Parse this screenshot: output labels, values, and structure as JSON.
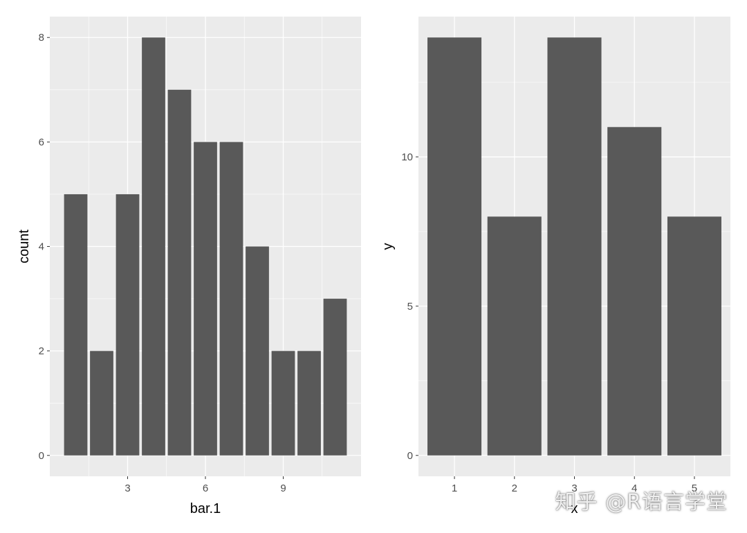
{
  "colors": {
    "panel": "#ebebeb",
    "grid": "#ffffff",
    "bar": "#595959",
    "tick_text": "#4d4d4d"
  },
  "chart_data": [
    {
      "type": "bar",
      "xlabel": "bar.1",
      "ylabel": "count",
      "x": [
        1,
        2,
        3,
        4,
        5,
        6,
        7,
        8,
        9,
        10,
        11
      ],
      "values": [
        5,
        2,
        5,
        8,
        7,
        6,
        6,
        4,
        2,
        2,
        3
      ],
      "xlim": [
        0.0,
        12.0
      ],
      "ylim": [
        -0.4,
        8.4
      ],
      "x_ticks": [
        3,
        6,
        9
      ],
      "y_ticks": [
        0,
        2,
        4,
        6,
        8
      ],
      "grid": true
    },
    {
      "type": "bar",
      "xlabel": "x",
      "ylabel": "y",
      "categories": [
        "1",
        "2",
        "3",
        "4",
        "5"
      ],
      "values": [
        14,
        8,
        14,
        11,
        8
      ],
      "ylim": [
        -0.7,
        14.7
      ],
      "y_ticks": [
        0,
        5,
        10
      ],
      "grid": true
    }
  ],
  "watermark": "知乎 @R语言学堂"
}
